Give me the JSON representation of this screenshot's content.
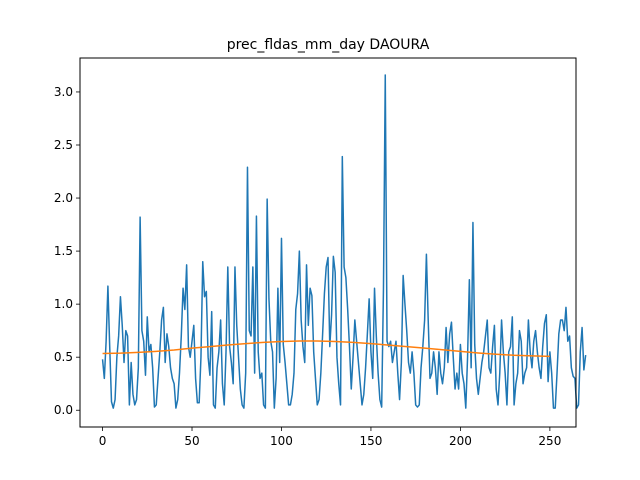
{
  "chart_data": {
    "type": "line",
    "title": "prec_fldas_mm_day DAOURA",
    "xlabel": "",
    "ylabel": "",
    "xlim": [
      -12.6,
      264.6
    ],
    "ylim": [
      -0.158,
      3.32
    ],
    "x_ticks": [
      "0",
      "50",
      "100",
      "150",
      "200",
      "250"
    ],
    "x_tick_values": [
      0,
      50,
      100,
      150,
      200,
      250
    ],
    "y_ticks": [
      "0.0",
      "0.5",
      "1.0",
      "1.5",
      "2.0",
      "2.5",
      "3.0"
    ],
    "y_tick_values": [
      0.0,
      0.5,
      1.0,
      1.5,
      2.0,
      2.5,
      3.0
    ],
    "grid": false,
    "legend": "none",
    "series": [
      {
        "color": "#1f77b4",
        "x_start": 0,
        "x_step": 1,
        "values": [
          0.48,
          0.3,
          0.65,
          1.17,
          0.6,
          0.08,
          0.02,
          0.1,
          0.5,
          0.7,
          1.07,
          0.8,
          0.45,
          0.75,
          0.7,
          0.05,
          0.45,
          0.15,
          0.05,
          0.1,
          0.4,
          1.82,
          0.75,
          0.65,
          0.33,
          0.88,
          0.55,
          0.62,
          0.4,
          0.03,
          0.05,
          0.3,
          0.55,
          0.85,
          0.97,
          0.45,
          0.72,
          0.6,
          0.4,
          0.3,
          0.25,
          0.02,
          0.1,
          0.35,
          0.7,
          1.15,
          0.95,
          1.37,
          0.6,
          0.5,
          0.65,
          0.8,
          0.3,
          0.07,
          0.07,
          0.5,
          1.4,
          1.07,
          1.12,
          0.5,
          0.33,
          0.93,
          0.05,
          0.02,
          0.4,
          0.55,
          0.85,
          0.25,
          0.05,
          0.55,
          1.35,
          0.6,
          0.45,
          0.25,
          1.35,
          0.8,
          0.5,
          0.2,
          0.05,
          0.02,
          0.35,
          2.29,
          0.75,
          0.7,
          1.35,
          0.35,
          1.83,
          0.55,
          0.3,
          0.35,
          0.05,
          0.02,
          1.99,
          1.05,
          0.65,
          0.55,
          0.02,
          0.3,
          1.15,
          0.45,
          1.62,
          0.62,
          0.45,
          0.25,
          0.05,
          0.05,
          0.15,
          0.35,
          0.95,
          1.1,
          1.5,
          0.85,
          0.6,
          0.45,
          1.37,
          0.8,
          1.15,
          1.08,
          0.55,
          0.3,
          0.05,
          0.1,
          0.35,
          0.72,
          1.1,
          1.35,
          1.44,
          0.6,
          0.9,
          1.45,
          1.3,
          0.5,
          0.25,
          0.05,
          2.39,
          1.35,
          1.25,
          0.95,
          0.6,
          0.2,
          0.5,
          0.85,
          0.65,
          0.45,
          0.25,
          0.05,
          0.15,
          0.4,
          0.72,
          1.05,
          0.55,
          0.3,
          1.15,
          0.7,
          0.35,
          0.1,
          0.03,
          1.15,
          3.16,
          0.65,
          0.6,
          0.65,
          0.45,
          0.55,
          0.65,
          0.35,
          0.1,
          0.45,
          1.27,
          1.0,
          0.75,
          0.45,
          0.35,
          0.55,
          0.35,
          0.05,
          0.03,
          0.05,
          0.4,
          0.6,
          0.85,
          1.47,
          0.85,
          0.3,
          0.35,
          0.55,
          0.4,
          0.15,
          0.55,
          0.35,
          0.25,
          0.4,
          0.78,
          0.45,
          0.72,
          0.83,
          0.5,
          0.2,
          0.35,
          0.2,
          0.62,
          0.35,
          0.25,
          0.02,
          0.5,
          1.23,
          0.4,
          1.77,
          0.62,
          0.3,
          0.15,
          0.3,
          0.45,
          0.55,
          0.7,
          0.85,
          0.4,
          0.35,
          0.6,
          0.8,
          0.2,
          0.05,
          0.35,
          0.85,
          0.55,
          0.35,
          0.05,
          0.55,
          0.6,
          0.88,
          0.05,
          0.25,
          0.35,
          0.75,
          0.65,
          0.25,
          0.35,
          0.4,
          0.85,
          0.55,
          0.4,
          0.65,
          0.75,
          0.55,
          0.4,
          0.3,
          0.6,
          0.82,
          0.9,
          0.27,
          0.55,
          0.35,
          0.02,
          0.02,
          0.35,
          0.72,
          0.85,
          0.85,
          0.75,
          0.97,
          0.65,
          0.7,
          0.4,
          0.32,
          0.3,
          0.02,
          0.05,
          0.55,
          0.78,
          0.38,
          0.52
        ]
      },
      {
        "color": "#ff7f0e",
        "x": [
          0,
          10,
          20,
          30,
          40,
          50,
          60,
          70,
          80,
          90,
          100,
          110,
          120,
          130,
          140,
          150,
          160,
          170,
          180,
          190,
          200,
          210,
          220,
          230,
          240,
          250
        ],
        "values": [
          0.535,
          0.538,
          0.545,
          0.555,
          0.568,
          0.585,
          0.6,
          0.615,
          0.628,
          0.64,
          0.648,
          0.652,
          0.652,
          0.648,
          0.64,
          0.628,
          0.614,
          0.6,
          0.585,
          0.57,
          0.555,
          0.54,
          0.528,
          0.518,
          0.512,
          0.508
        ]
      }
    ]
  }
}
